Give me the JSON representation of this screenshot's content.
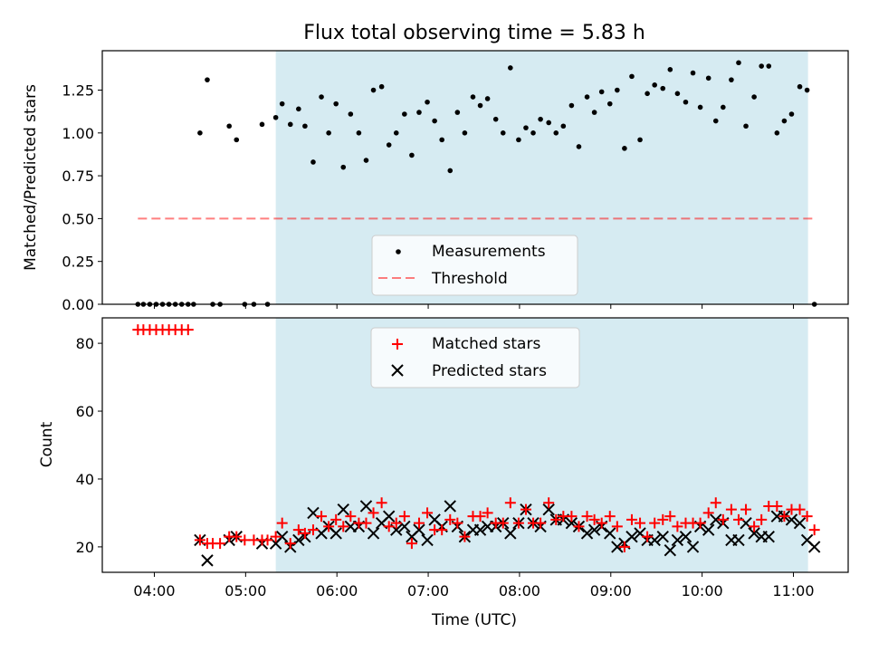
{
  "title": "Flux total observing time = 5.83 h",
  "colors": {
    "band": "#add8e6",
    "measure": "#000000",
    "threshold": "#ff0000",
    "matched": "#ff0000",
    "predicted": "#000000"
  },
  "chart_data": [
    {
      "type": "scatter",
      "panel": "top",
      "ylabel": "Matched/Predicted stars",
      "ylim": [
        0,
        1.48
      ],
      "yticks": [
        0,
        0.25,
        0.5,
        0.75,
        1.0,
        1.25
      ],
      "ytick_labels": [
        "0.00",
        "0.25",
        "0.50",
        "0.75",
        "1.00",
        "1.25"
      ],
      "xlim_hours": [
        3.43,
        11.6
      ],
      "shaded_interval_hours": [
        5.33,
        11.16
      ],
      "threshold": {
        "label": "Threshold",
        "value": 0.5,
        "x_range_hours": [
          3.82,
          11.25
        ],
        "style": "dashed"
      },
      "legend": {
        "position": "lower-center",
        "entries": [
          "Measurements",
          "Threshold"
        ]
      },
      "series": [
        {
          "name": "Measurements",
          "x_hours": [
            3.82,
            3.88,
            3.95,
            4.02,
            4.09,
            4.16,
            4.23,
            4.3,
            4.37,
            4.43,
            4.5,
            4.58,
            4.64,
            4.72,
            4.82,
            4.9,
            4.99,
            5.09,
            5.18,
            5.24,
            5.33,
            5.4,
            5.49,
            5.58,
            5.65,
            5.74,
            5.83,
            5.91,
            5.99,
            6.07,
            6.15,
            6.24,
            6.32,
            6.4,
            6.49,
            6.57,
            6.65,
            6.74,
            6.82,
            6.9,
            6.99,
            7.07,
            7.15,
            7.24,
            7.32,
            7.4,
            7.49,
            7.57,
            7.65,
            7.74,
            7.82,
            7.9,
            7.99,
            8.07,
            8.15,
            8.23,
            8.32,
            8.4,
            8.48,
            8.57,
            8.65,
            8.74,
            8.82,
            8.9,
            8.99,
            9.07,
            9.15,
            9.23,
            9.32,
            9.4,
            9.48,
            9.57,
            9.65,
            9.73,
            9.82,
            9.9,
            9.98,
            10.07,
            10.15,
            10.23,
            10.32,
            10.4,
            10.48,
            10.57,
            10.65,
            10.73,
            10.82,
            10.9,
            10.98,
            11.07,
            11.15,
            11.23
          ],
          "y": [
            0,
            0,
            0,
            0,
            0,
            0,
            0,
            0,
            0,
            0,
            1.0,
            1.31,
            0,
            0,
            1.04,
            0.96,
            0,
            0,
            1.05,
            0,
            1.09,
            1.17,
            1.05,
            1.14,
            1.04,
            0.83,
            1.21,
            1.0,
            1.17,
            0.8,
            1.11,
            1.0,
            0.84,
            1.25,
            1.27,
            0.93,
            1.0,
            1.11,
            0.87,
            1.12,
            1.18,
            1.07,
            0.96,
            0.78,
            1.12,
            1.0,
            1.21,
            1.16,
            1.2,
            1.08,
            1.0,
            1.38,
            0.96,
            1.03,
            1.0,
            1.08,
            1.06,
            1.0,
            1.04,
            1.16,
            0.92,
            1.21,
            1.12,
            1.24,
            1.17,
            1.25,
            0.91,
            1.33,
            0.96,
            1.23,
            1.28,
            1.26,
            1.37,
            1.23,
            1.18,
            1.35,
            1.15,
            1.32,
            1.07,
            1.15,
            1.31,
            1.41,
            1.04,
            1.21,
            1.39,
            1.39,
            1.0,
            1.07,
            1.11,
            1.27,
            1.25,
            0
          ]
        }
      ]
    },
    {
      "type": "scatter",
      "panel": "bottom",
      "xlabel": "Time (UTC)",
      "ylabel": "Count",
      "ylim": [
        12.5,
        87.5
      ],
      "yticks": [
        20,
        40,
        60,
        80
      ],
      "ytick_labels": [
        "20",
        "40",
        "60",
        "80"
      ],
      "xticks_hours": [
        4,
        5,
        6,
        7,
        8,
        9,
        10,
        11
      ],
      "xtick_labels": [
        "04:00",
        "05:00",
        "06:00",
        "07:00",
        "08:00",
        "09:00",
        "10:00",
        "11:00"
      ],
      "xlim_hours": [
        3.43,
        11.6
      ],
      "shaded_interval_hours": [
        5.33,
        11.16
      ],
      "legend": {
        "position": "upper-center",
        "entries": [
          "Matched stars",
          "Predicted stars"
        ]
      },
      "series": [
        {
          "name": "Matched stars",
          "marker": "+",
          "x_hours": [
            3.82,
            3.88,
            3.95,
            4.02,
            4.09,
            4.16,
            4.23,
            4.3,
            4.37,
            4.5,
            4.58,
            4.64,
            4.72,
            4.82,
            4.9,
            4.99,
            5.09,
            5.18,
            5.24,
            5.33,
            5.4,
            5.49,
            5.58,
            5.65,
            5.74,
            5.83,
            5.91,
            5.99,
            6.07,
            6.15,
            6.24,
            6.32,
            6.4,
            6.49,
            6.57,
            6.65,
            6.74,
            6.82,
            6.9,
            6.99,
            7.07,
            7.15,
            7.24,
            7.32,
            7.4,
            7.49,
            7.57,
            7.65,
            7.74,
            7.82,
            7.9,
            7.99,
            8.07,
            8.15,
            8.23,
            8.32,
            8.4,
            8.48,
            8.57,
            8.65,
            8.74,
            8.82,
            8.9,
            8.99,
            9.07,
            9.15,
            9.23,
            9.32,
            9.4,
            9.48,
            9.57,
            9.65,
            9.73,
            9.82,
            9.9,
            9.98,
            10.07,
            10.15,
            10.23,
            10.32,
            10.4,
            10.48,
            10.57,
            10.65,
            10.73,
            10.82,
            10.9,
            10.98,
            11.07,
            11.15,
            11.23
          ],
          "y": [
            84,
            84,
            84,
            84,
            84,
            84,
            84,
            84,
            84,
            22,
            21,
            21,
            21,
            23,
            23,
            22,
            22,
            22,
            22,
            23,
            27,
            21,
            25,
            24,
            25,
            29,
            26,
            28,
            26,
            29,
            27,
            27,
            30,
            33,
            26,
            27,
            29,
            21,
            27,
            30,
            25,
            25,
            28,
            27,
            23,
            29,
            29,
            30,
            27,
            27,
            33,
            27,
            31,
            27,
            27,
            33,
            28,
            29,
            29,
            26,
            29,
            28,
            27,
            29,
            26,
            20,
            28,
            27,
            23,
            27,
            28,
            29,
            26,
            27,
            27,
            27,
            30,
            33,
            28,
            31,
            28,
            31,
            26,
            28,
            32,
            32,
            29,
            31,
            31,
            29,
            25
          ]
        },
        {
          "name": "Predicted stars",
          "marker": "x",
          "x_hours": [
            4.5,
            4.58,
            4.82,
            4.9,
            5.18,
            5.33,
            5.4,
            5.49,
            5.58,
            5.65,
            5.74,
            5.83,
            5.91,
            5.99,
            6.07,
            6.15,
            6.24,
            6.32,
            6.4,
            6.49,
            6.57,
            6.65,
            6.74,
            6.82,
            6.9,
            6.99,
            7.07,
            7.15,
            7.24,
            7.32,
            7.4,
            7.49,
            7.57,
            7.65,
            7.74,
            7.82,
            7.9,
            7.99,
            8.07,
            8.15,
            8.23,
            8.32,
            8.4,
            8.48,
            8.57,
            8.65,
            8.74,
            8.82,
            8.9,
            8.99,
            9.07,
            9.15,
            9.23,
            9.32,
            9.4,
            9.48,
            9.57,
            9.65,
            9.73,
            9.82,
            9.9,
            9.98,
            10.07,
            10.15,
            10.23,
            10.32,
            10.4,
            10.48,
            10.57,
            10.65,
            10.73,
            10.82,
            10.9,
            10.98,
            11.07,
            11.15,
            11.23
          ],
          "y": [
            22,
            16,
            22,
            23,
            21,
            21,
            23,
            20,
            22,
            23,
            30,
            24,
            26,
            24,
            31,
            26,
            26,
            32,
            24,
            27,
            29,
            25,
            26,
            23,
            25,
            22,
            28,
            26,
            32,
            26,
            23,
            25,
            25,
            26,
            26,
            27,
            24,
            27,
            31,
            27,
            26,
            31,
            28,
            28,
            27,
            26,
            24,
            25,
            26,
            24,
            20,
            21,
            23,
            24,
            22,
            22,
            23,
            19,
            22,
            23,
            20,
            26,
            25,
            28,
            27,
            22,
            22,
            27,
            24,
            23,
            23,
            29,
            29,
            28,
            27,
            22,
            20
          ]
        }
      ]
    }
  ]
}
